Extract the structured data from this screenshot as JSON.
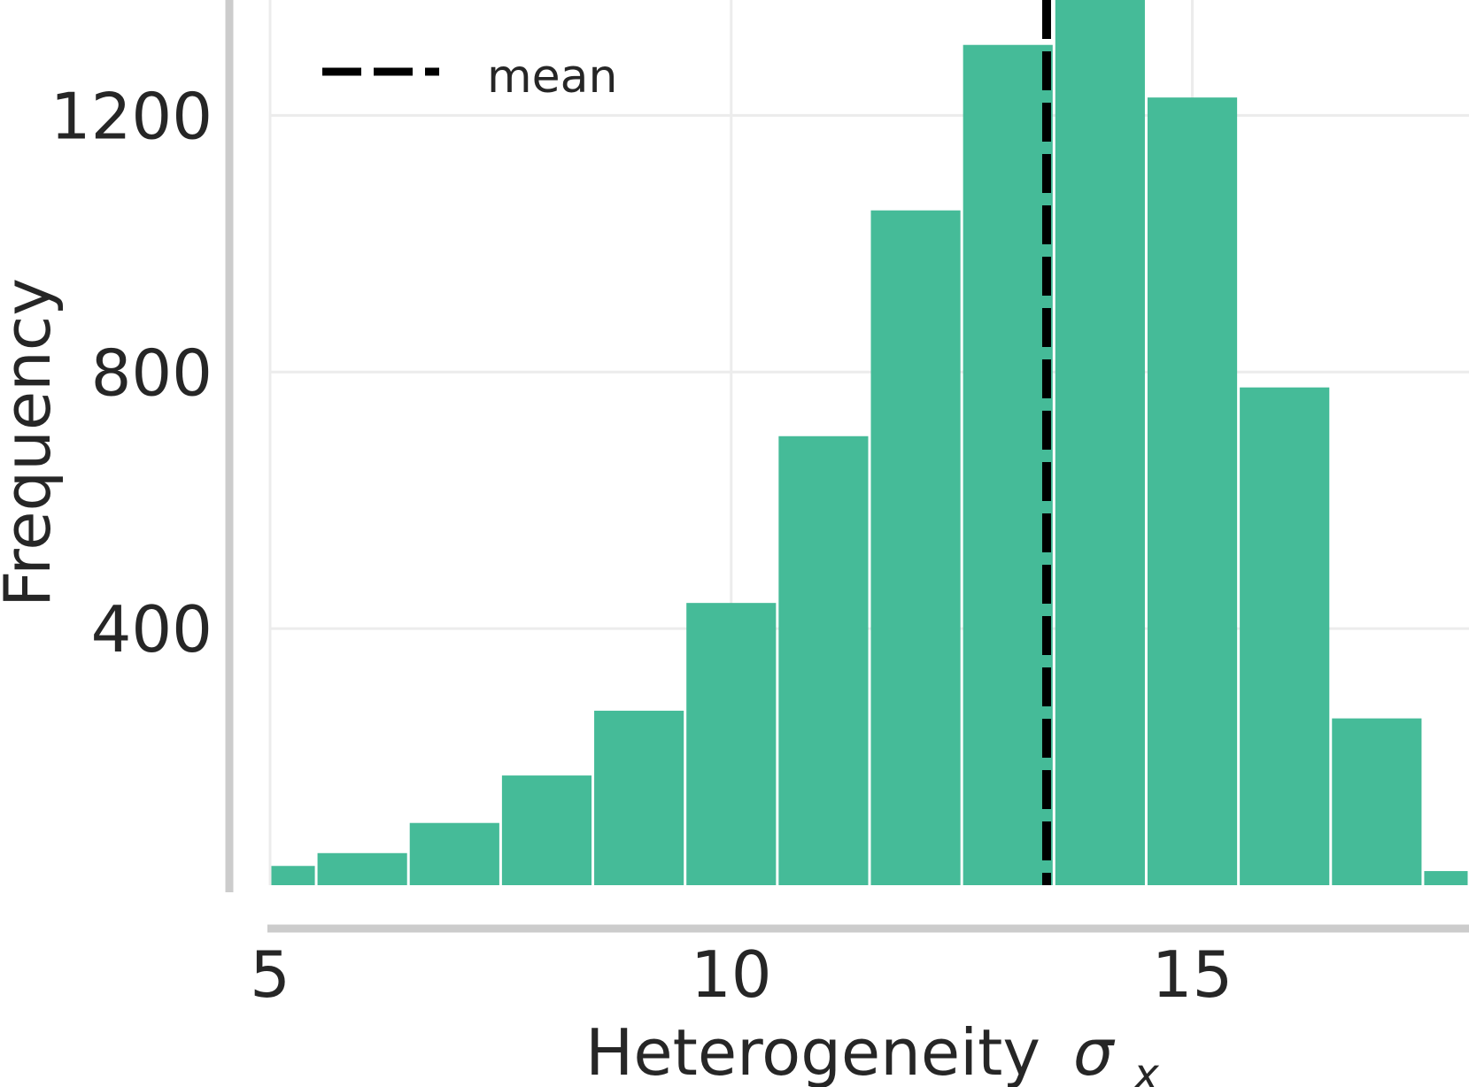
{
  "chart_data": {
    "type": "bar",
    "subtype": "histogram",
    "xlabel": "Heterogeneity",
    "xlabel_symbol": "σ",
    "xlabel_subscript": "x",
    "ylabel": "Frequency",
    "xlim": [
      5,
      18
    ],
    "ylim": [
      0,
      1380
    ],
    "xticks": [
      5,
      10,
      15
    ],
    "xtick_labels": [
      "5",
      "10",
      "15"
    ],
    "yticks": [
      400,
      800,
      1200
    ],
    "ytick_labels": [
      "400",
      "800",
      "1200"
    ],
    "grid": true,
    "bin_width": 1.0,
    "bins": [
      {
        "start": 4.5,
        "end": 5.5,
        "count": 30
      },
      {
        "start": 5.5,
        "end": 6.5,
        "count": 50
      },
      {
        "start": 6.5,
        "end": 7.5,
        "count": 97
      },
      {
        "start": 7.5,
        "end": 8.5,
        "count": 171
      },
      {
        "start": 8.5,
        "end": 9.5,
        "count": 272
      },
      {
        "start": 9.5,
        "end": 10.5,
        "count": 440
      },
      {
        "start": 10.5,
        "end": 11.5,
        "count": 700
      },
      {
        "start": 11.5,
        "end": 12.5,
        "count": 1052
      },
      {
        "start": 12.5,
        "end": 13.5,
        "count": 1310
      },
      {
        "start": 13.5,
        "end": 14.5,
        "count": 1392
      },
      {
        "start": 14.5,
        "end": 15.5,
        "count": 1228
      },
      {
        "start": 15.5,
        "end": 16.5,
        "count": 776
      },
      {
        "start": 16.5,
        "end": 17.5,
        "count": 260
      },
      {
        "start": 17.5,
        "end": 18.5,
        "count": 22
      }
    ],
    "mean": 13.42,
    "legend": {
      "position": "top-left",
      "entries": [
        {
          "label": "mean",
          "style": "dashed",
          "color": "#000000"
        }
      ]
    },
    "colors": {
      "bar": "#45bb98",
      "bar_edge": "#ffffff",
      "grid": "#ececec",
      "axis": "#cccccc",
      "mean_line": "#000000",
      "text": "#262626"
    }
  }
}
